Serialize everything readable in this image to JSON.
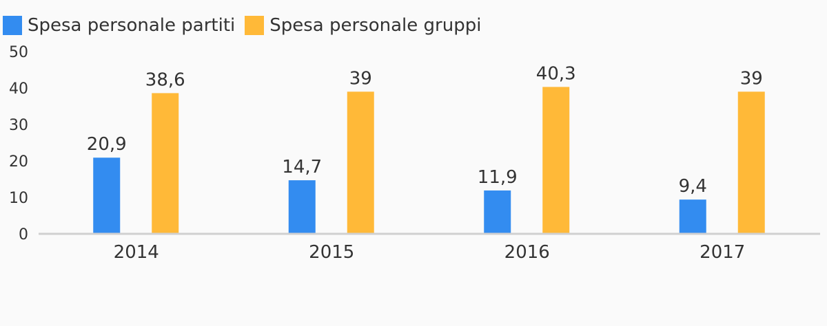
{
  "chart_data": {
    "type": "bar",
    "title": "",
    "xlabel": "",
    "ylabel": "",
    "categories": [
      "2014",
      "2015",
      "2016",
      "2017"
    ],
    "series": [
      {
        "name": "Spesa personale partiti",
        "color": "#338cf0",
        "values": [
          20.9,
          14.7,
          11.9,
          9.4
        ],
        "labels": [
          "20,9",
          "14,7",
          "11,9",
          "9,4"
        ]
      },
      {
        "name": "Spesa personale gruppi",
        "color": "#ffb938",
        "values": [
          38.6,
          39,
          40.3,
          39
        ],
        "labels": [
          "38,6",
          "39",
          "40,3",
          "39"
        ]
      }
    ],
    "ylim": [
      0,
      50
    ],
    "yticks": [
      "0",
      "10",
      "20",
      "30",
      "40",
      "50"
    ],
    "ytick_values": [
      0,
      10,
      20,
      30,
      40,
      50
    ],
    "grid": false,
    "legend_position": "top-left"
  }
}
